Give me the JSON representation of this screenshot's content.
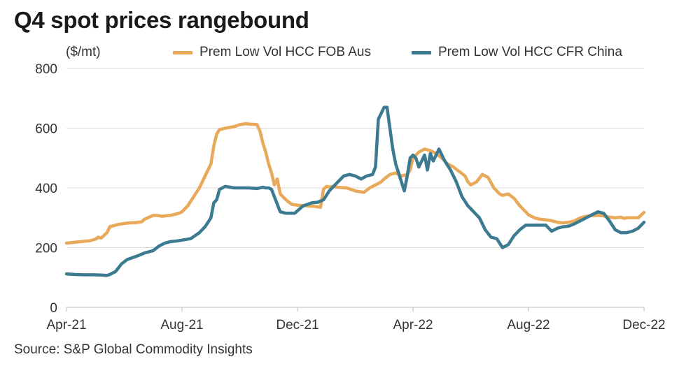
{
  "chart_data": {
    "type": "line",
    "title": "Q4 spot prices rangebound",
    "ylabel": "($/mt)",
    "xlabel": "",
    "source": "Source: S&P Global Commodity Insights",
    "ylim": [
      0,
      800
    ],
    "yticks": [
      0,
      200,
      400,
      600,
      800
    ],
    "xlim": [
      0,
      20
    ],
    "xticks": [
      {
        "x": 0,
        "label": "Apr-21"
      },
      {
        "x": 4,
        "label": "Aug-21"
      },
      {
        "x": 8,
        "label": "Dec-21"
      },
      {
        "x": 12,
        "label": "Apr-22"
      },
      {
        "x": 16,
        "label": "Aug-22"
      },
      {
        "x": 20,
        "label": "Dec-22"
      }
    ],
    "grid": true,
    "legend_position": "top-right",
    "series": [
      {
        "name": "Prem Low Vol HCC FOB Aus",
        "color": "#E8A95B",
        "x": [
          0,
          0.3,
          0.5,
          0.8,
          1.0,
          1.1,
          1.2,
          1.4,
          1.5,
          1.8,
          2.1,
          2.4,
          2.6,
          2.7,
          3.0,
          3.2,
          3.3,
          3.6,
          3.9,
          4.0,
          4.2,
          4.4,
          4.6,
          4.8,
          5.0,
          5.1,
          5.2,
          5.3,
          5.5,
          5.8,
          6.0,
          6.2,
          6.4,
          6.6,
          6.7,
          6.8,
          6.9,
          7.0,
          7.1,
          7.2,
          7.3,
          7.4,
          7.6,
          7.8,
          8.0,
          8.3,
          8.6,
          8.8,
          8.9,
          9.0,
          9.1,
          9.2,
          9.4,
          9.7,
          10.0,
          10.3,
          10.5,
          10.7,
          10.9,
          11.0,
          11.2,
          11.4,
          11.6,
          11.8,
          11.9,
          12.0,
          12.2,
          12.4,
          12.6,
          12.8,
          13.0,
          13.2,
          13.4,
          13.6,
          13.8,
          13.9,
          14.0,
          14.2,
          14.4,
          14.6,
          14.8,
          15.0,
          15.1,
          15.3,
          15.5,
          15.7,
          15.9,
          16.0,
          16.2,
          16.4,
          16.6,
          16.8,
          17.0,
          17.2,
          17.4,
          17.6,
          17.8,
          18.0,
          18.2,
          18.4,
          18.6,
          18.8,
          19.0,
          19.2,
          19.3,
          19.4,
          19.6,
          19.8,
          20.0
        ],
        "y": [
          215,
          218,
          220,
          223,
          228,
          235,
          232,
          250,
          270,
          278,
          282,
          284,
          286,
          295,
          308,
          307,
          305,
          308,
          315,
          320,
          340,
          370,
          400,
          440,
          480,
          540,
          580,
          595,
          600,
          605,
          612,
          615,
          613,
          612,
          590,
          550,
          520,
          480,
          450,
          410,
          430,
          380,
          360,
          345,
          342,
          340,
          338,
          335,
          395,
          405,
          403,
          405,
          402,
          400,
          390,
          385,
          400,
          410,
          420,
          430,
          445,
          450,
          440,
          445,
          460,
          500,
          520,
          530,
          525,
          515,
          500,
          480,
          470,
          455,
          440,
          420,
          410,
          420,
          445,
          435,
          400,
          380,
          375,
          380,
          365,
          340,
          320,
          310,
          300,
          295,
          293,
          290,
          285,
          283,
          285,
          290,
          300,
          305,
          307,
          308,
          306,
          302,
          300,
          302,
          298,
          300,
          300,
          300,
          318
        ]
      },
      {
        "name": "Prem Low Vol HCC CFR China",
        "color": "#3C7A92",
        "x": [
          0,
          0.3,
          0.6,
          0.9,
          1.2,
          1.4,
          1.5,
          1.7,
          1.9,
          2.1,
          2.4,
          2.7,
          3.0,
          3.2,
          3.4,
          3.6,
          3.8,
          4.0,
          4.3,
          4.6,
          4.8,
          5.0,
          5.1,
          5.2,
          5.3,
          5.5,
          5.8,
          6.0,
          6.3,
          6.6,
          6.8,
          6.9,
          7.0,
          7.1,
          7.2,
          7.4,
          7.6,
          7.9,
          8.2,
          8.5,
          8.7,
          8.9,
          9.1,
          9.3,
          9.6,
          9.8,
          10.0,
          10.2,
          10.4,
          10.6,
          10.7,
          10.8,
          10.9,
          11.0,
          11.1,
          11.3,
          11.4,
          11.5,
          11.6,
          11.7,
          11.8,
          11.9,
          12.0,
          12.1,
          12.2,
          12.4,
          12.5,
          12.6,
          12.7,
          12.8,
          12.9,
          13.0,
          13.1,
          13.3,
          13.5,
          13.7,
          13.9,
          14.1,
          14.3,
          14.5,
          14.7,
          14.9,
          15.1,
          15.3,
          15.5,
          15.7,
          15.9,
          16.0,
          16.2,
          16.4,
          16.6,
          16.8,
          17.0,
          17.2,
          17.4,
          17.6,
          17.8,
          18.0,
          18.2,
          18.4,
          18.6,
          18.8,
          19.0,
          19.2,
          19.4,
          19.6,
          19.8,
          20.0
        ],
        "y": [
          112,
          110,
          109,
          109,
          108,
          107,
          110,
          120,
          145,
          160,
          170,
          182,
          190,
          205,
          215,
          220,
          222,
          225,
          230,
          250,
          270,
          300,
          350,
          360,
          395,
          405,
          400,
          400,
          400,
          398,
          402,
          400,
          400,
          395,
          370,
          320,
          315,
          315,
          340,
          350,
          352,
          360,
          390,
          410,
          440,
          445,
          440,
          430,
          440,
          445,
          470,
          630,
          650,
          670,
          670,
          530,
          480,
          450,
          420,
          390,
          440,
          500,
          510,
          500,
          470,
          510,
          460,
          515,
          490,
          510,
          530,
          510,
          490,
          460,
          420,
          370,
          340,
          320,
          300,
          260,
          235,
          230,
          200,
          210,
          240,
          260,
          275,
          275,
          275,
          275,
          275,
          255,
          265,
          270,
          272,
          280,
          290,
          300,
          310,
          320,
          315,
          290,
          260,
          250,
          250,
          255,
          265,
          285
        ]
      }
    ]
  }
}
